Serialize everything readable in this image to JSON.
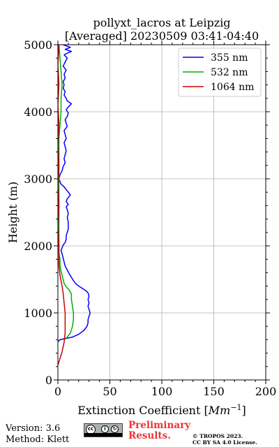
{
  "colors": {
    "blue": "#0000ff",
    "green": "#00b000",
    "red": "#cc0000",
    "grid": "#b0b0b0",
    "preliminary": "#ee3333"
  },
  "footer": {
    "version": "Version: 3.6",
    "method": "Method: Klett",
    "preliminary_line1": "Preliminary",
    "preliminary_line2": "Results.",
    "copyright_line1": "© TROPOS 2023.",
    "copyright_line2": "CC BY SA 4.0 License.",
    "cc_badge_icon": "cc-by-sa-icon"
  },
  "chart_data": {
    "type": "line",
    "title": "pollyxt_lacros at Leipzig",
    "subtitle": "[Averaged] 20230509 03:41-04:40",
    "xlabel": "Extinction Coefficient",
    "xlabel_unit": "Mm",
    "xlabel_unit_exp": "−1",
    "ylabel": "Height (m)",
    "xlim": [
      0,
      200
    ],
    "ylim": [
      0,
      5000
    ],
    "x_ticks": [
      0,
      50,
      100,
      150,
      200
    ],
    "y_ticks": [
      0,
      1000,
      2000,
      3000,
      4000,
      5000
    ],
    "grid": true,
    "legend_position": "top-right",
    "series": [
      {
        "name": "355 nm",
        "color": "#0000ff",
        "points": [
          [
            -3,
            520
          ],
          [
            2,
            600
          ],
          [
            8,
            620
          ],
          [
            14,
            640
          ],
          [
            20,
            680
          ],
          [
            25,
            740
          ],
          [
            28,
            800
          ],
          [
            29,
            850
          ],
          [
            29,
            900
          ],
          [
            30,
            950
          ],
          [
            31,
            1000
          ],
          [
            30,
            1050
          ],
          [
            29,
            1100
          ],
          [
            30,
            1150
          ],
          [
            29,
            1200
          ],
          [
            30,
            1250
          ],
          [
            29,
            1300
          ],
          [
            27,
            1330
          ],
          [
            24,
            1360
          ],
          [
            20,
            1400
          ],
          [
            17,
            1440
          ],
          [
            15,
            1480
          ],
          [
            13,
            1530
          ],
          [
            11,
            1580
          ],
          [
            9,
            1640
          ],
          [
            7,
            1700
          ],
          [
            6,
            1760
          ],
          [
            5,
            1820
          ],
          [
            4,
            1880
          ],
          [
            3,
            1930
          ],
          [
            4,
            1970
          ],
          [
            5,
            2010
          ],
          [
            7,
            2050
          ],
          [
            8,
            2100
          ],
          [
            8,
            2150
          ],
          [
            9,
            2200
          ],
          [
            10,
            2250
          ],
          [
            10,
            2300
          ],
          [
            10,
            2360
          ],
          [
            9,
            2420
          ],
          [
            10,
            2480
          ],
          [
            9,
            2540
          ],
          [
            8,
            2580
          ],
          [
            10,
            2620
          ],
          [
            8,
            2660
          ],
          [
            9,
            2700
          ],
          [
            12,
            2760
          ],
          [
            10,
            2800
          ],
          [
            8,
            2840
          ],
          [
            6,
            2880
          ],
          [
            3,
            2920
          ],
          [
            2,
            2960
          ],
          [
            1,
            3000
          ],
          [
            2,
            3060
          ],
          [
            4,
            3120
          ],
          [
            5,
            3180
          ],
          [
            7,
            3240
          ],
          [
            6,
            3300
          ],
          [
            7,
            3360
          ],
          [
            8,
            3420
          ],
          [
            7,
            3480
          ],
          [
            6,
            3540
          ],
          [
            8,
            3600
          ],
          [
            7,
            3660
          ],
          [
            6,
            3720
          ],
          [
            9,
            3780
          ],
          [
            8,
            3830
          ],
          [
            7,
            3880
          ],
          [
            9,
            3930
          ],
          [
            10,
            3980
          ],
          [
            8,
            4030
          ],
          [
            10,
            4070
          ],
          [
            13,
            4120
          ],
          [
            9,
            4160
          ],
          [
            8,
            4200
          ],
          [
            6,
            4250
          ],
          [
            7,
            4300
          ],
          [
            5,
            4350
          ],
          [
            6,
            4400
          ],
          [
            5,
            4450
          ],
          [
            7,
            4500
          ],
          [
            6,
            4560
          ],
          [
            8,
            4620
          ],
          [
            5,
            4680
          ],
          [
            7,
            4740
          ],
          [
            9,
            4800
          ],
          [
            6,
            4850
          ],
          [
            10,
            4880
          ],
          [
            13,
            4900
          ],
          [
            7,
            4930
          ],
          [
            12,
            4960
          ],
          [
            5,
            5000
          ]
        ]
      },
      {
        "name": "532 nm",
        "color": "#00b000",
        "points": [
          [
            8,
            620
          ],
          [
            12,
            700
          ],
          [
            14,
            800
          ],
          [
            15,
            900
          ],
          [
            15,
            1000
          ],
          [
            14,
            1100
          ],
          [
            13,
            1200
          ],
          [
            13,
            1280
          ],
          [
            11,
            1340
          ],
          [
            8,
            1390
          ],
          [
            6,
            1440
          ],
          [
            5,
            1500
          ],
          [
            4,
            1560
          ],
          [
            3,
            1620
          ],
          [
            2,
            1700
          ],
          [
            2,
            1800
          ],
          [
            1,
            1900
          ],
          [
            1,
            2000
          ],
          [
            1,
            2200
          ],
          [
            1,
            2400
          ],
          [
            1,
            2600
          ],
          [
            1,
            2800
          ],
          [
            1,
            3000
          ],
          [
            1,
            3200
          ],
          [
            1,
            3400
          ],
          [
            1,
            3600
          ],
          [
            2,
            3800
          ],
          [
            3,
            4000
          ],
          [
            3,
            4200
          ],
          [
            4,
            4400
          ],
          [
            3,
            4600
          ],
          [
            2,
            4800
          ],
          [
            1,
            5000
          ]
        ]
      },
      {
        "name": "1064 nm",
        "color": "#cc0000",
        "points": [
          [
            0,
            220
          ],
          [
            2,
            320
          ],
          [
            4,
            420
          ],
          [
            6,
            560
          ],
          [
            7,
            700
          ],
          [
            7,
            850
          ],
          [
            7,
            1000
          ],
          [
            6,
            1150
          ],
          [
            5,
            1300
          ],
          [
            4,
            1400
          ],
          [
            3,
            1480
          ],
          [
            2,
            1560
          ],
          [
            1,
            1700
          ],
          [
            1,
            2000
          ],
          [
            0,
            2300
          ],
          [
            1,
            2600
          ],
          [
            0,
            2900
          ],
          [
            1,
            3200
          ],
          [
            0,
            3500
          ],
          [
            1,
            3800
          ],
          [
            0,
            4100
          ],
          [
            1,
            4400
          ],
          [
            0,
            4700
          ],
          [
            1,
            5000
          ]
        ]
      }
    ]
  }
}
